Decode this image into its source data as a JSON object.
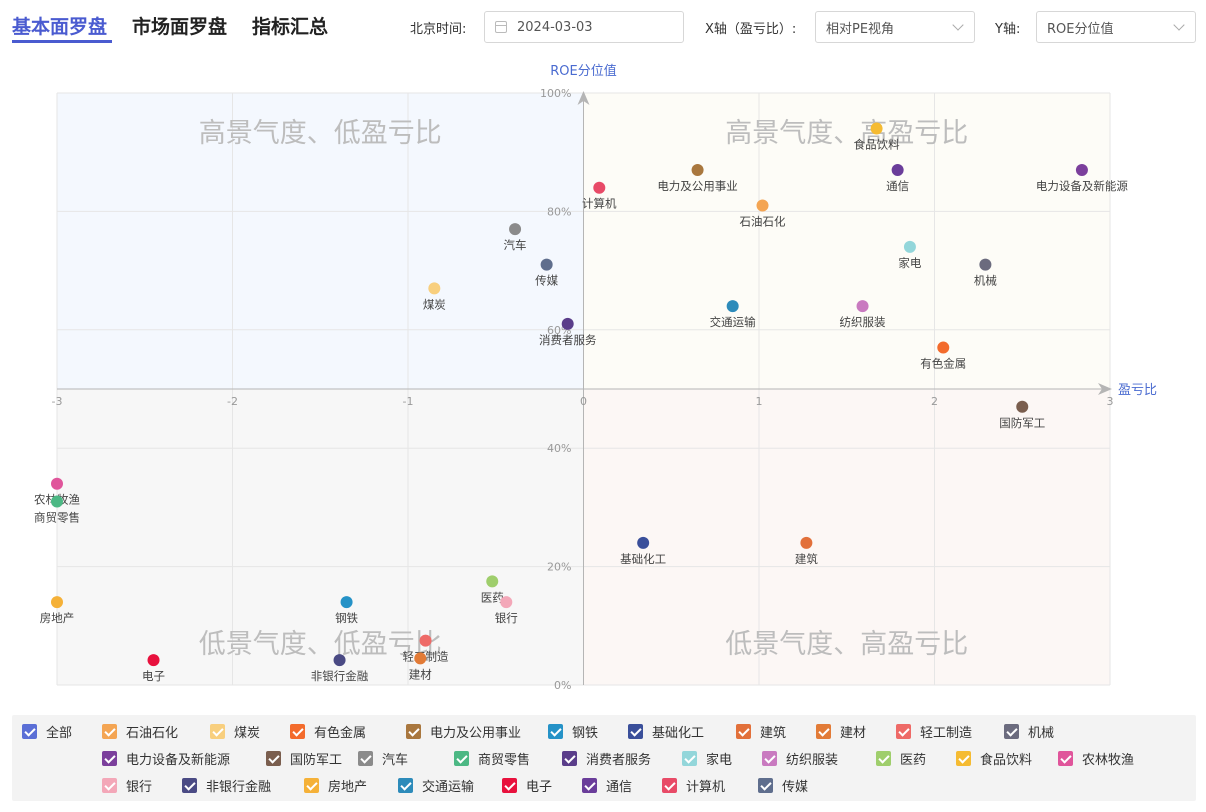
{
  "tabs": {
    "basic": "基本面罗盘",
    "market": "市场面罗盘",
    "summary": "指标汇总"
  },
  "controls": {
    "time_label": "北京时间:",
    "date_value": "2024-03-03",
    "x_label": "X轴（盈亏比）:",
    "x_value": "相对PE视角",
    "y_label": "Y轴:",
    "y_value": "ROE分位值"
  },
  "chart_data": {
    "type": "scatter",
    "x_label": "盈亏比",
    "y_label": "ROE分位值",
    "xlim": [
      -3,
      3
    ],
    "x_ticks": [
      "-3",
      "-2",
      "-1",
      "0",
      "1",
      "2",
      "3"
    ],
    "y_ticks": [
      "0%",
      "20%",
      "40%",
      "60%",
      "80%",
      "100%"
    ],
    "ylim": [
      0,
      100
    ],
    "grid": true,
    "quadrants": {
      "top_left": "高景气度、低盈亏比",
      "top_right": "高景气度、高盈亏比",
      "bottom_left": "低景气度、低盈亏比",
      "bottom_right": "低景气度、高盈亏比"
    },
    "quadrant_colors": {
      "top_left": "#f4f8fe",
      "top_right": "#fdfcf7",
      "bottom_left": "#f7f7f7",
      "bottom_right": "#fcf7f5"
    },
    "points": [
      {
        "name": "食品饮料",
        "x": 1.67,
        "y": 94,
        "color": "#f5bb32"
      },
      {
        "name": "通信",
        "x": 1.79,
        "y": 87,
        "color": "#6a3d9a"
      },
      {
        "name": "电力设备及新能源",
        "x": 2.84,
        "y": 87,
        "color": "#7b3f9c"
      },
      {
        "name": "电力及公用事业",
        "x": 0.65,
        "y": 87,
        "color": "#a9773e"
      },
      {
        "name": "计算机",
        "x": 0.09,
        "y": 84,
        "color": "#e84a67"
      },
      {
        "name": "石油石化",
        "x": 1.02,
        "y": 81,
        "color": "#f4a553"
      },
      {
        "name": "汽车",
        "x": -0.39,
        "y": 77,
        "color": "#8b8b8b"
      },
      {
        "name": "家电",
        "x": 1.86,
        "y": 74,
        "color": "#93d6da"
      },
      {
        "name": "机械",
        "x": 2.29,
        "y": 71,
        "color": "#6b6b7e"
      },
      {
        "name": "传媒",
        "x": -0.21,
        "y": 71,
        "color": "#5f6e8d"
      },
      {
        "name": "煤炭",
        "x": -0.85,
        "y": 67,
        "color": "#f8cf7e"
      },
      {
        "name": "交通运输",
        "x": 0.85,
        "y": 64,
        "color": "#2d8bba"
      },
      {
        "name": "纺织服装",
        "x": 1.59,
        "y": 64,
        "color": "#c97ac0"
      },
      {
        "name": "消费者服务",
        "x": -0.09,
        "y": 61,
        "color": "#5a3d8a"
      },
      {
        "name": "有色金属",
        "x": 2.05,
        "y": 57,
        "color": "#f36b2c"
      },
      {
        "name": "国防军工",
        "x": 2.5,
        "y": 47,
        "color": "#7a5e4e"
      },
      {
        "name": "农林牧渔",
        "x": -3.0,
        "y": 34,
        "color": "#e0559b"
      },
      {
        "name": "商贸零售",
        "x": -3.0,
        "y": 31,
        "color": "#4cb884"
      },
      {
        "name": "基础化工",
        "x": 0.34,
        "y": 24,
        "color": "#3a4f9a"
      },
      {
        "name": "建筑",
        "x": 1.27,
        "y": 24,
        "color": "#e2703a"
      },
      {
        "name": "医药",
        "x": -0.52,
        "y": 17.5,
        "color": "#9fce6c"
      },
      {
        "name": "房地产",
        "x": -3.0,
        "y": 14,
        "color": "#f5b138"
      },
      {
        "name": "钢铁",
        "x": -1.35,
        "y": 14,
        "color": "#2592c7"
      },
      {
        "name": "银行",
        "x": -0.44,
        "y": 14,
        "color": "#f3a7b8"
      },
      {
        "name": "轻工制造",
        "x": -0.9,
        "y": 7.5,
        "color": "#ee6a67"
      },
      {
        "name": "建材",
        "x": -0.93,
        "y": 4.5,
        "color": "#e27b37"
      },
      {
        "name": "电子",
        "x": -2.45,
        "y": 4.2,
        "color": "#e8113d"
      },
      {
        "name": "非银行金融",
        "x": -1.39,
        "y": 4.2,
        "color": "#4a4a84"
      }
    ]
  },
  "legend": {
    "items": [
      {
        "label": "全部",
        "color": "#5b6fd6"
      },
      {
        "label": "石油石化",
        "color": "#f4a553"
      },
      {
        "label": "煤炭",
        "color": "#f8cf7e"
      },
      {
        "label": "有色金属",
        "color": "#f36b2c"
      },
      {
        "label": "电力及公用事业",
        "color": "#a9773e"
      },
      {
        "label": "钢铁",
        "color": "#2592c7"
      },
      {
        "label": "基础化工",
        "color": "#3a4f9a"
      },
      {
        "label": "建筑",
        "color": "#e2703a"
      },
      {
        "label": "建材",
        "color": "#e27b37"
      },
      {
        "label": "轻工制造",
        "color": "#ee6a67"
      },
      {
        "label": "机械",
        "color": "#6b6b7e"
      },
      {
        "label": "电力设备及新能源",
        "color": "#7b3f9c"
      },
      {
        "label": "国防军工",
        "color": "#7a5e4e"
      },
      {
        "label": "汽车",
        "color": "#8b8b8b"
      },
      {
        "label": "商贸零售",
        "color": "#4cb884"
      },
      {
        "label": "消费者服务",
        "color": "#5a3d8a"
      },
      {
        "label": "家电",
        "color": "#93d6da"
      },
      {
        "label": "纺织服装",
        "color": "#c97ac0"
      },
      {
        "label": "医药",
        "color": "#9fce6c"
      },
      {
        "label": "食品饮料",
        "color": "#f5bb32"
      },
      {
        "label": "农林牧渔",
        "color": "#e0559b"
      },
      {
        "label": "银行",
        "color": "#f3a7b8"
      },
      {
        "label": "非银行金融",
        "color": "#4a4a84"
      },
      {
        "label": "房地产",
        "color": "#f5b138"
      },
      {
        "label": "交通运输",
        "color": "#2d8bba"
      },
      {
        "label": "电子",
        "color": "#e8113d"
      },
      {
        "label": "通信",
        "color": "#6a3d9a"
      },
      {
        "label": "计算机",
        "color": "#e84a67"
      },
      {
        "label": "传媒",
        "color": "#5f6e8d"
      }
    ]
  }
}
